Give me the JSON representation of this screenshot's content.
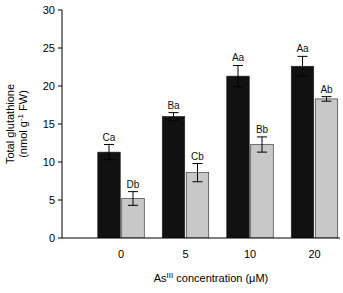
{
  "chart_data": {
    "type": "bar",
    "x_label": [
      {
        "text": "As"
      },
      {
        "text": "III",
        "sup": true
      },
      {
        "text": " concentration (μM)"
      }
    ],
    "y_label": [
      [
        {
          "text": "Total glutathione"
        }
      ],
      [
        {
          "text": "(nmol g"
        },
        {
          "text": "-1",
          "sup": true
        },
        {
          "text": " FW)"
        }
      ]
    ],
    "categories": [
      "0",
      "5",
      "10",
      "20"
    ],
    "series": [
      {
        "color": "#111111",
        "values": [
          11.3,
          16.0,
          21.3,
          22.6
        ],
        "errors": [
          1.0,
          0.5,
          1.4,
          1.3
        ],
        "letters": [
          "Ca",
          "Ba",
          "Aa",
          "Aa"
        ]
      },
      {
        "color": "#c8c8c8",
        "values": [
          5.2,
          8.6,
          12.3,
          18.3
        ],
        "errors": [
          0.9,
          1.2,
          1.0,
          0.3
        ],
        "letters": [
          "Db",
          "Cb",
          "Bb",
          "Ab"
        ]
      }
    ],
    "ylim": [
      0,
      30
    ],
    "yticks": [
      0,
      5,
      10,
      15,
      20,
      25,
      30
    ],
    "grid": false
  }
}
